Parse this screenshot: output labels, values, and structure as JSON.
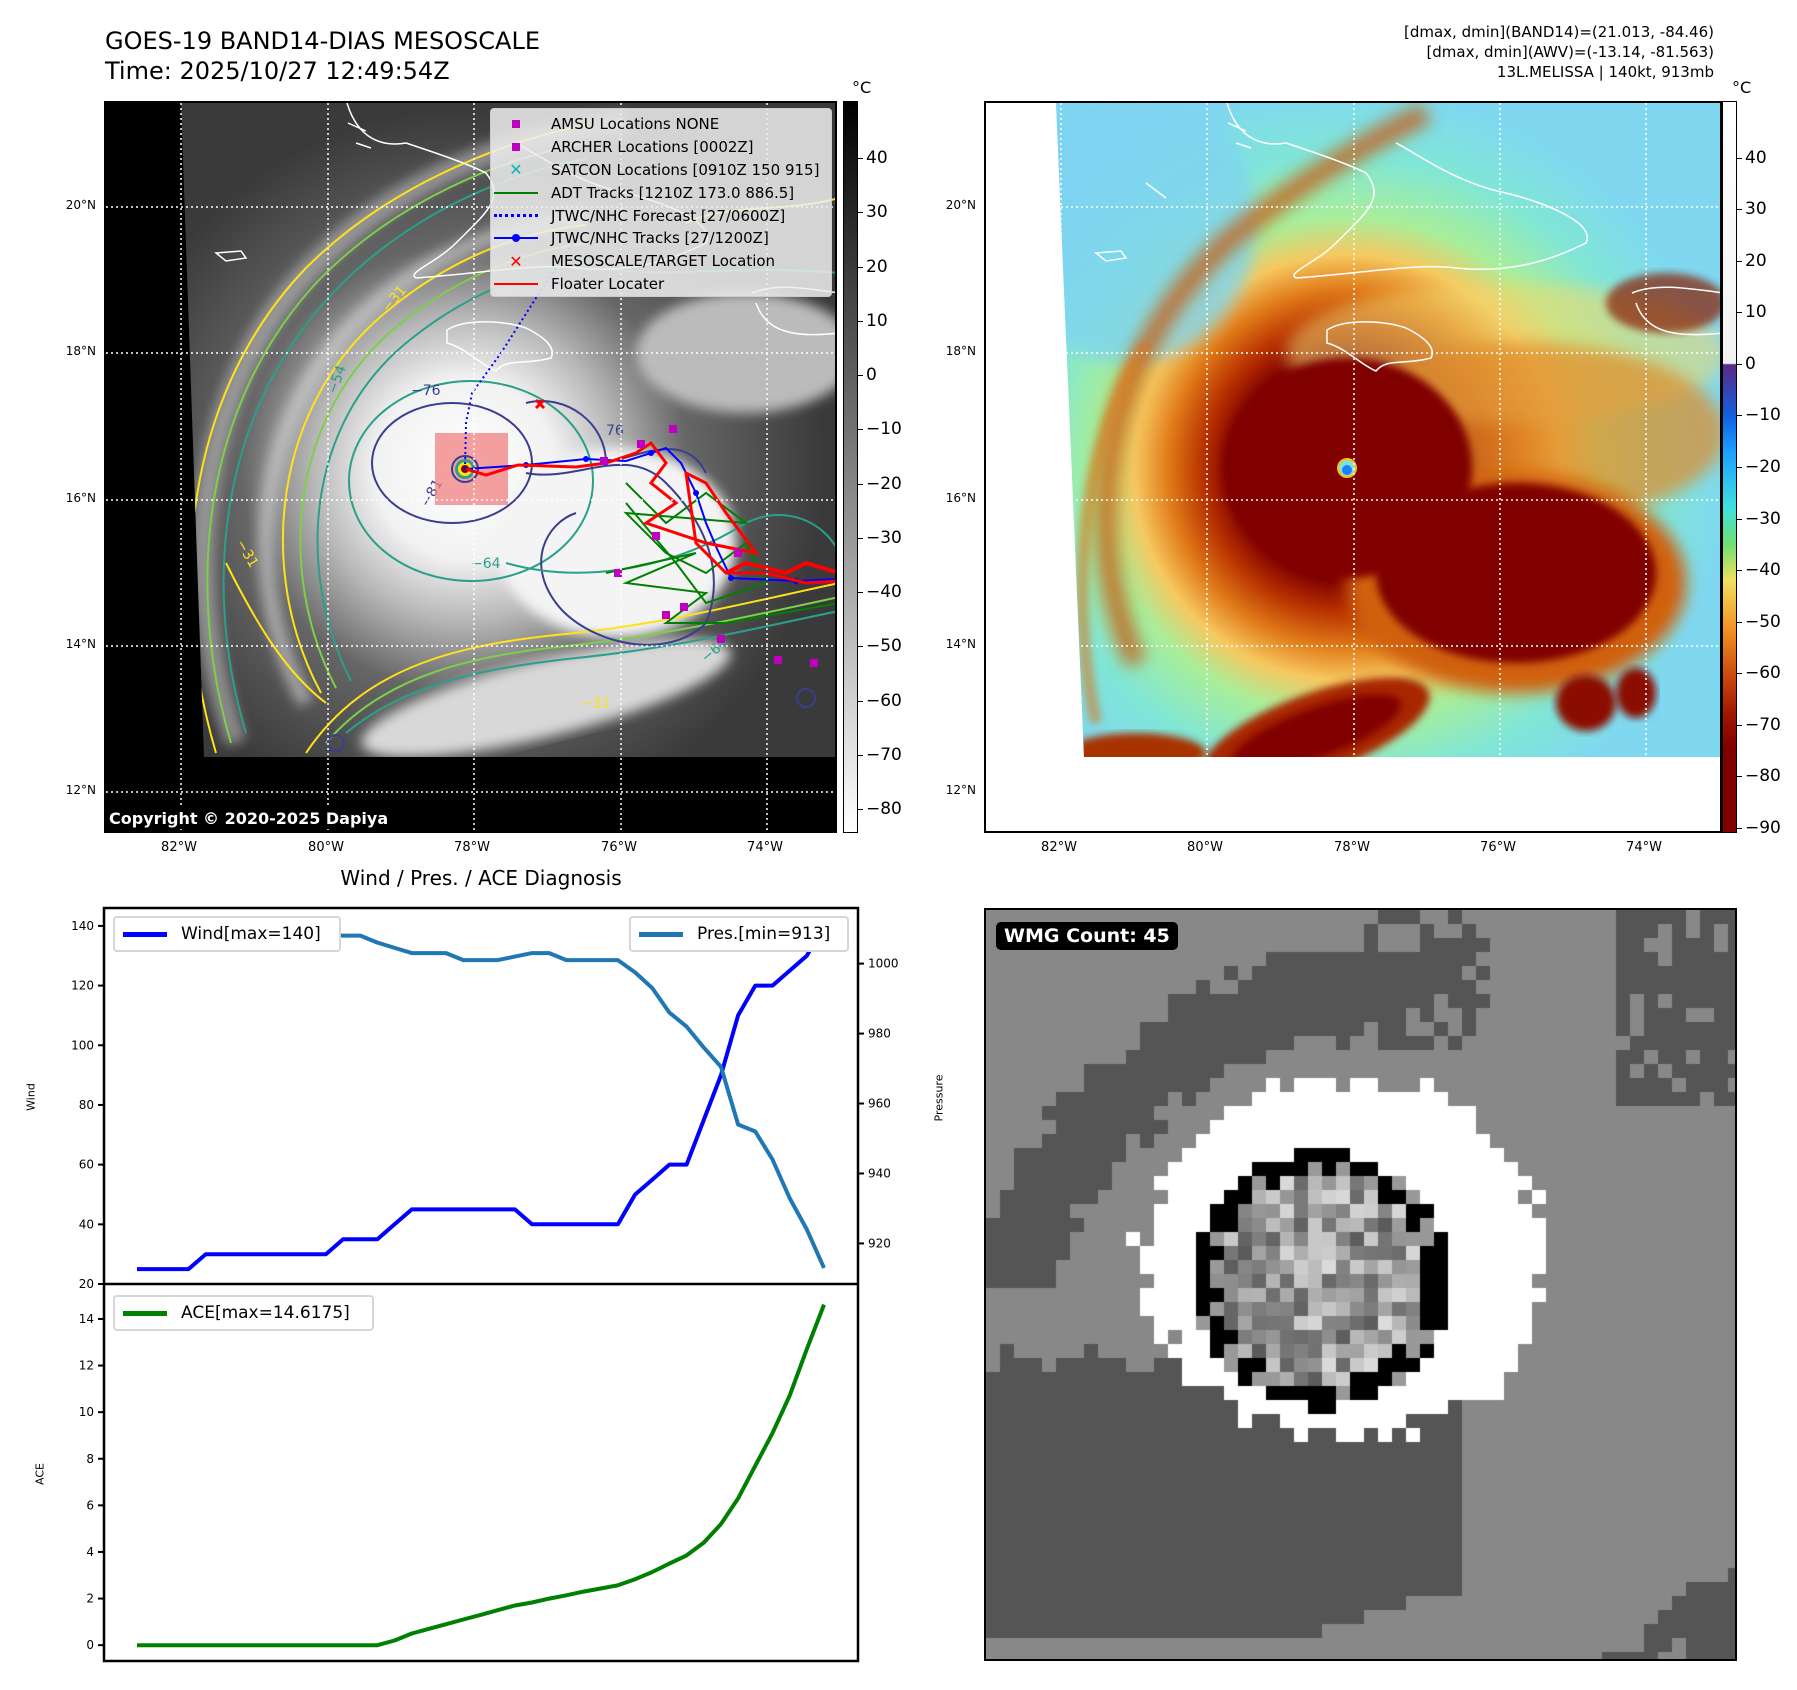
{
  "header": {
    "title": "GOES-19 BAND14-DIAS MESOSCALE",
    "time": "Time: 2025/10/27 12:49:54Z",
    "stats": [
      "[dmax, dmin](BAND14)=(21.013, -84.46)",
      "[dmax, dmin](AWV)=(-13.14, -81.563)",
      "13L.MELISSA | 140kt, 913mb"
    ]
  },
  "maps": {
    "lat_labels": [
      "20°N",
      "18°N",
      "16°N",
      "14°N",
      "12°N"
    ],
    "lon_labels": [
      "82°W",
      "80°W",
      "78°W",
      "76°W",
      "74°W"
    ],
    "left": {
      "unit": "°C",
      "colorbar": {
        "range": [
          -84.4,
          50.5
        ],
        "ticks": [
          40,
          30,
          20,
          10,
          0,
          -10,
          -20,
          -30,
          -40,
          -50,
          -60,
          -70,
          -80
        ],
        "tick_labels": [
          "40",
          "30",
          "20",
          "10",
          "0",
          "−10",
          "−20",
          "−30",
          "−40",
          "−50",
          "−60",
          "−70",
          "−80"
        ]
      },
      "copyright": "Copyright © 2020-2025 Dapiya",
      "contour_labels": [
        "−76",
        "−54",
        "−64",
        "−31",
        "−81",
        "76",
        "−31",
        "−64",
        "−31"
      ],
      "legend": [
        {
          "label": "AMSU Locations NONE",
          "marker": "square",
          "color": "#c000c0"
        },
        {
          "label": "ARCHER Locations [0002Z]",
          "marker": "square",
          "color": "#c000c0"
        },
        {
          "label": "SATCON Locations [0910Z 150 915]",
          "marker": "x",
          "color": "#00b8b8"
        },
        {
          "label": "ADT Tracks [1210Z 173.0 886.5]",
          "marker": "line",
          "color": "#008000"
        },
        {
          "label": "JTWC/NHC Forecast [27/0600Z]",
          "marker": "dotted",
          "color": "#0000ff"
        },
        {
          "label": "JTWC/NHC Tracks [27/1200Z]",
          "marker": "line-dot",
          "color": "#0000ff"
        },
        {
          "label": "MESOSCALE/TARGET Location",
          "marker": "x",
          "color": "#ff0000"
        },
        {
          "label": "Floater Locater",
          "marker": "line",
          "color": "#ff0000"
        }
      ]
    },
    "right": {
      "unit": "°C",
      "colorbar": {
        "range": [
          -91,
          51
        ],
        "ticks": [
          40,
          30,
          20,
          10,
          0,
          -10,
          -20,
          -30,
          -40,
          -50,
          -60,
          -70,
          -80,
          -90
        ],
        "tick_labels": [
          "40",
          "30",
          "20",
          "10",
          "0",
          "−10",
          "−20",
          "−30",
          "−40",
          "−50",
          "−60",
          "−70",
          "−80",
          "−90"
        ]
      }
    }
  },
  "chart_data": {
    "type": "line",
    "title": "Wind / Pres. / ACE Diagnosis",
    "wind": {
      "name": "Wind[max=140]",
      "ylabel": "Wind",
      "color": "#0000ff",
      "ylim": [
        20,
        146
      ],
      "ticks": [
        20,
        40,
        60,
        80,
        100,
        120,
        140
      ],
      "values": [
        25,
        25,
        25,
        25,
        30,
        30,
        30,
        30,
        30,
        30,
        30,
        30,
        35,
        35,
        35,
        40,
        45,
        45,
        45,
        45,
        45,
        45,
        45,
        40,
        40,
        40,
        40,
        40,
        40,
        50,
        55,
        60,
        60,
        75,
        90,
        110,
        120,
        120,
        125,
        130,
        140
      ]
    },
    "pressure": {
      "name": "Pres.[min=913]",
      "ylabel": "Pressure",
      "color": "#1f77b4",
      "ylim": [
        908.4,
        1015.9
      ],
      "ticks": [
        920,
        940,
        960,
        980,
        1000
      ],
      "values": [
        1011,
        1011,
        1011,
        1011,
        1011,
        1010,
        1010,
        1010,
        1009,
        1009,
        1009,
        1008,
        1008,
        1008,
        1006,
        1004.5,
        1003,
        1003,
        1003,
        1001,
        1001,
        1001,
        1002,
        1003,
        1003,
        1001,
        1001,
        1001,
        1001,
        997.5,
        993,
        986,
        982,
        976,
        970.5,
        954,
        952,
        944,
        933,
        924,
        913
      ]
    },
    "ace": {
      "name": "ACE[max=14.6175]",
      "ylabel": "ACE",
      "color": "#008000",
      "ylim": [
        -0.68,
        15.5
      ],
      "ticks": [
        0,
        2,
        4,
        6,
        8,
        10,
        12,
        14
      ],
      "values": [
        0,
        0,
        0,
        0,
        0,
        0,
        0,
        0,
        0,
        0,
        0,
        0,
        0,
        0,
        0,
        0.2,
        0.5,
        0.7,
        0.9,
        1.1,
        1.3,
        1.5,
        1.7,
        1.83,
        2.0,
        2.14,
        2.3,
        2.43,
        2.57,
        2.83,
        3.14,
        3.5,
        3.85,
        4.4,
        5.2,
        6.3,
        7.7,
        9.1,
        10.7,
        12.7,
        14.6175
      ]
    }
  },
  "wmg": {
    "label": "WMG Count: 45"
  }
}
